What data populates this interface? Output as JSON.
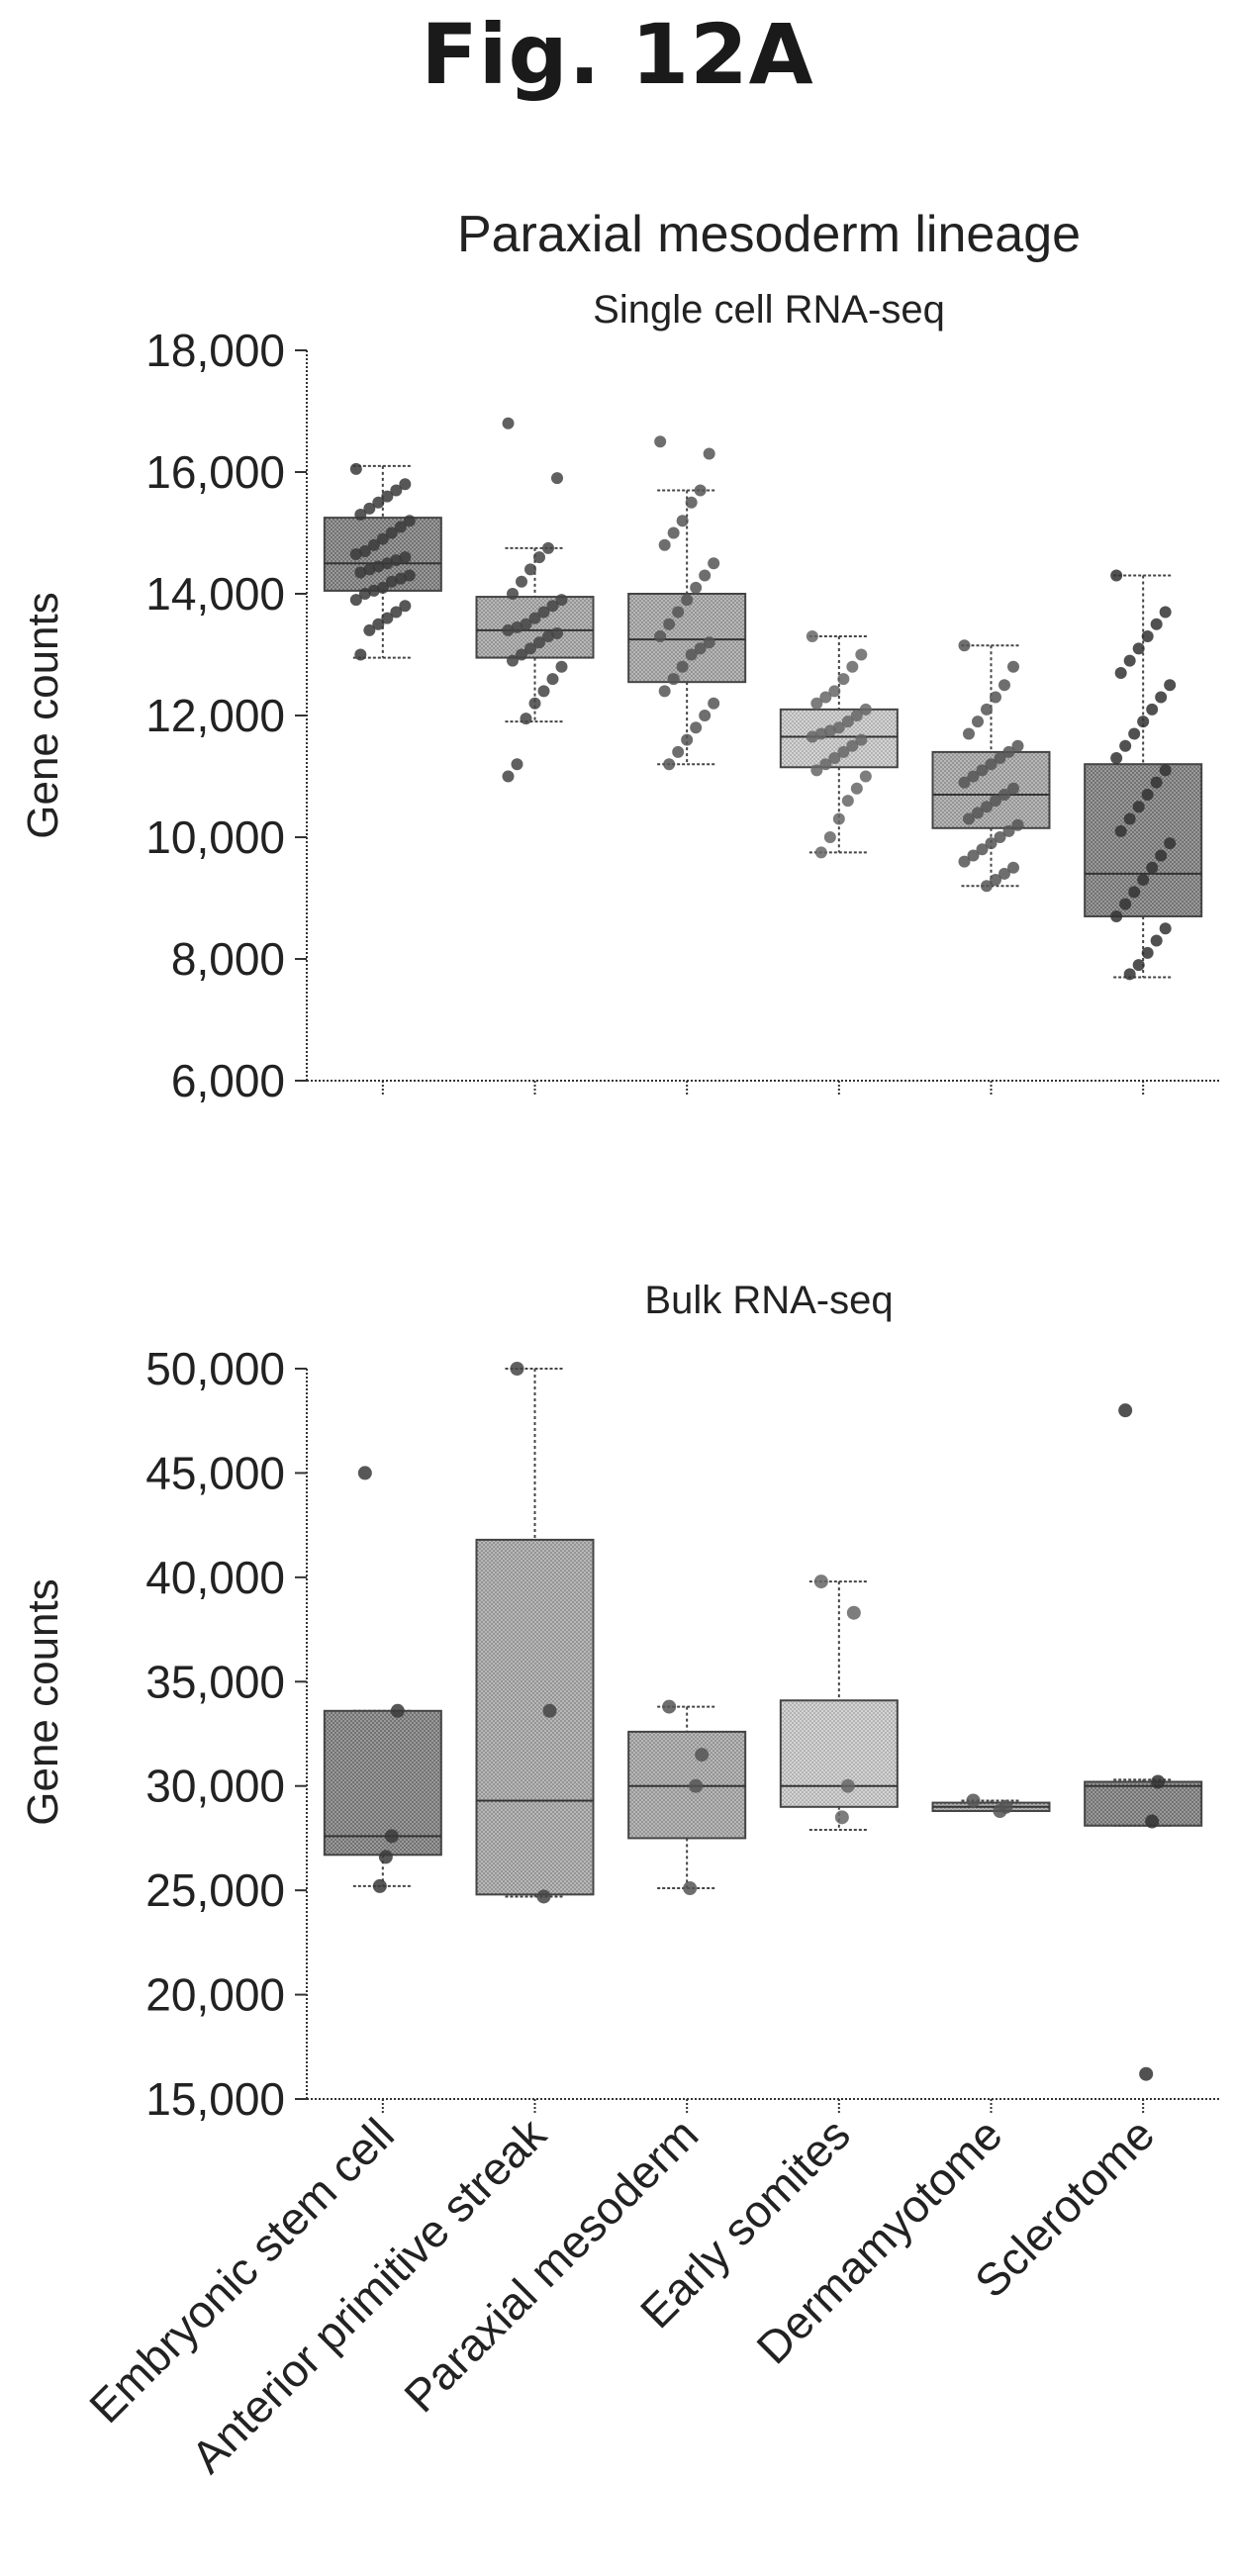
{
  "figure_label": "Fig. 12A",
  "chart_data": [
    {
      "type": "box",
      "title": "Paraxial mesoderm lineage",
      "subtitle": "Single cell RNA-seq",
      "ylabel": "Gene counts",
      "ylim": [
        6000,
        18000
      ],
      "yticks": [
        6000,
        8000,
        10000,
        12000,
        14000,
        16000,
        18000
      ],
      "ytick_labels": [
        "6,000",
        "8,000",
        "10,000",
        "12,000",
        "14,000",
        "16,000",
        "18,000"
      ],
      "categories": [
        "Embryonic stem cell",
        "Anterior primitive streak",
        "Paraxial mesoderm",
        "Early somites",
        "Dermamyotome",
        "Sclerotome"
      ],
      "boxes": [
        {
          "whisker_low": 12950,
          "q1": 14050,
          "median": 14500,
          "q3": 15250,
          "whisker_high": 16100,
          "points": [
            16050,
            15800,
            15700,
            15600,
            15500,
            15400,
            15300,
            15200,
            15100,
            15000,
            14900,
            14800,
            14700,
            14650,
            14600,
            14550,
            14500,
            14450,
            14400,
            14350,
            14300,
            14250,
            14200,
            14100,
            14050,
            14000,
            13900,
            13800,
            13700,
            13600,
            13500,
            13400,
            13000
          ]
        },
        {
          "whisker_low": 11900,
          "q1": 12950,
          "median": 13400,
          "q3": 13950,
          "whisker_high": 14750,
          "points": [
            16800,
            15900,
            14750,
            14600,
            14400,
            14200,
            14000,
            13900,
            13800,
            13700,
            13600,
            13500,
            13450,
            13400,
            13350,
            13300,
            13200,
            13100,
            13000,
            12900,
            12800,
            12600,
            12400,
            12200,
            11950,
            11200,
            11000
          ]
        },
        {
          "whisker_low": 11200,
          "q1": 12550,
          "median": 13250,
          "q3": 14000,
          "whisker_high": 15700,
          "points": [
            16500,
            16300,
            15700,
            15500,
            15200,
            15000,
            14800,
            14500,
            14300,
            14100,
            13900,
            13700,
            13500,
            13300,
            13200,
            13100,
            13000,
            12800,
            12600,
            12400,
            12200,
            12000,
            11800,
            11600,
            11400,
            11200
          ]
        },
        {
          "whisker_low": 9750,
          "q1": 11150,
          "median": 11650,
          "q3": 12100,
          "whisker_high": 13300,
          "points": [
            13300,
            13000,
            12800,
            12600,
            12400,
            12300,
            12200,
            12100,
            12000,
            11900,
            11800,
            11750,
            11700,
            11650,
            11600,
            11500,
            11400,
            11300,
            11200,
            11100,
            11000,
            10800,
            10600,
            10300,
            10000,
            9750
          ]
        },
        {
          "whisker_low": 9200,
          "q1": 10150,
          "median": 10700,
          "q3": 11400,
          "whisker_high": 13150,
          "points": [
            13150,
            12800,
            12500,
            12300,
            12100,
            11900,
            11700,
            11500,
            11400,
            11300,
            11200,
            11100,
            11000,
            10900,
            10800,
            10700,
            10600,
            10500,
            10400,
            10300,
            10200,
            10100,
            10000,
            9900,
            9800,
            9700,
            9600,
            9500,
            9400,
            9300,
            9200
          ]
        },
        {
          "whisker_low": 7700,
          "q1": 8700,
          "median": 9400,
          "q3": 11200,
          "whisker_high": 14300,
          "points": [
            14300,
            13700,
            13500,
            13300,
            13100,
            12900,
            12700,
            12500,
            12300,
            12100,
            11900,
            11700,
            11500,
            11300,
            11100,
            10900,
            10700,
            10500,
            10300,
            10100,
            9900,
            9700,
            9500,
            9300,
            9100,
            8900,
            8700,
            8500,
            8300,
            8100,
            7900,
            7750
          ]
        }
      ]
    },
    {
      "type": "box",
      "subtitle": "Bulk RNA-seq",
      "ylabel": "Gene counts",
      "ylim": [
        15000,
        50000
      ],
      "yticks": [
        15000,
        20000,
        25000,
        30000,
        35000,
        40000,
        45000,
        50000
      ],
      "ytick_labels": [
        "15,000",
        "20,000",
        "25,000",
        "30,000",
        "35,000",
        "40,000",
        "45,000",
        "50,000"
      ],
      "categories": [
        "Embryonic stem cell",
        "Anterior primitive streak",
        "Paraxial mesoderm",
        "Early somites",
        "Dermamyotome",
        "Sclerotome"
      ],
      "boxes": [
        {
          "whisker_low": 25200,
          "q1": 26700,
          "median": 27600,
          "q3": 33600,
          "whisker_high": 33600,
          "points": [
            45000,
            33600,
            27600,
            26600,
            25200
          ]
        },
        {
          "whisker_low": 24700,
          "q1": 24800,
          "median": 29300,
          "q3": 41800,
          "whisker_high": 50000,
          "points": [
            50000,
            33600,
            24700
          ]
        },
        {
          "whisker_low": 25100,
          "q1": 27500,
          "median": 30000,
          "q3": 32600,
          "whisker_high": 33800,
          "points": [
            33800,
            31500,
            30000,
            25100
          ]
        },
        {
          "whisker_low": 27900,
          "q1": 29000,
          "median": 30000,
          "q3": 34100,
          "whisker_high": 39800,
          "points": [
            39800,
            38300,
            30000,
            28500
          ]
        },
        {
          "whisker_low": 28800,
          "q1": 28800,
          "median": 29000,
          "q3": 29200,
          "whisker_high": 29300,
          "points": [
            29300,
            29000,
            28800
          ]
        },
        {
          "whisker_low": 28100,
          "q1": 28100,
          "median": 30000,
          "q3": 30200,
          "whisker_high": 30300,
          "points": [
            48000,
            30200,
            28300,
            16200
          ]
        }
      ]
    }
  ]
}
